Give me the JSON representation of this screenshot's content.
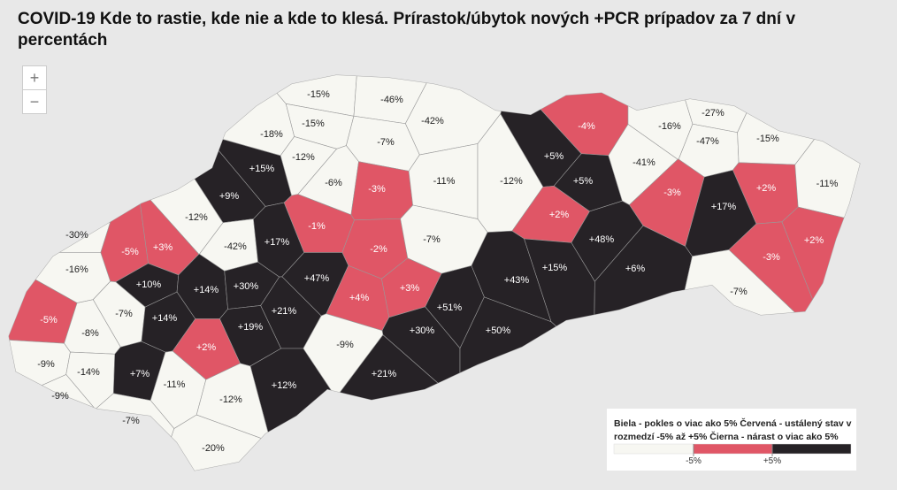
{
  "title": "COVID-19 Kde to rastie, kde nie a kde to klesá. Prírastok/úbytok nových  +PCR prípadov za 7 dní v percentách",
  "zoom": {
    "in": "+",
    "out": "−"
  },
  "legend": {
    "text": "Biela - pokles o viac ako 5% Červená - ustálený stav v rozmedzí -5% až +5% Čierna - nárast o viac ako 5%",
    "colors": [
      "#f7f7f2",
      "#e05666",
      "#262226"
    ],
    "thresholds": [
      {
        "value": -5,
        "label": "-5%"
      },
      {
        "value": 5,
        "label": "+5%"
      }
    ]
  },
  "districts": [
    {
      "value": -15,
      "label": "-15%"
    },
    {
      "value": -46,
      "label": "-46%"
    },
    {
      "value": -15,
      "label": "-15%"
    },
    {
      "value": -42,
      "label": "-42%"
    },
    {
      "value": -18,
      "label": "-18%"
    },
    {
      "value": -7,
      "label": "-7%"
    },
    {
      "value": -4,
      "label": "-4%"
    },
    {
      "value": -16,
      "label": "-16%"
    },
    {
      "value": -27,
      "label": "-27%"
    },
    {
      "value": -47,
      "label": "-47%"
    },
    {
      "value": -15,
      "label": "-15%"
    },
    {
      "value": 5,
      "label": "+5%"
    },
    {
      "value": -12,
      "label": "-12%"
    },
    {
      "value": 15,
      "label": "+15%"
    },
    {
      "value": -6,
      "label": "-6%"
    },
    {
      "value": -3,
      "label": "-3%"
    },
    {
      "value": -11,
      "label": "-11%"
    },
    {
      "value": -12,
      "label": "-12%"
    },
    {
      "value": 5,
      "label": "+5%"
    },
    {
      "value": -41,
      "label": "-41%"
    },
    {
      "value": -3,
      "label": "-3%"
    },
    {
      "value": 2,
      "label": "+2%"
    },
    {
      "value": -11,
      "label": "-11%"
    },
    {
      "value": 9,
      "label": "+9%"
    },
    {
      "value": 17,
      "label": "+17%"
    },
    {
      "value": -12,
      "label": "-12%"
    },
    {
      "value": 2,
      "label": "+2%"
    },
    {
      "value": -1,
      "label": "-1%"
    },
    {
      "value": -30,
      "label": "-30%"
    },
    {
      "value": -42,
      "label": "-42%"
    },
    {
      "value": 17,
      "label": "+17%"
    },
    {
      "value": -2,
      "label": "-2%"
    },
    {
      "value": -7,
      "label": "-7%"
    },
    {
      "value": 48,
      "label": "+48%"
    },
    {
      "value": 2,
      "label": "+2%"
    },
    {
      "value": -5,
      "label": "-5%"
    },
    {
      "value": 3,
      "label": "+3%"
    },
    {
      "value": -3,
      "label": "-3%"
    },
    {
      "value": -16,
      "label": "-16%"
    },
    {
      "value": 15,
      "label": "+15%"
    },
    {
      "value": 6,
      "label": "+6%"
    },
    {
      "value": 10,
      "label": "+10%"
    },
    {
      "value": 14,
      "label": "+14%"
    },
    {
      "value": 30,
      "label": "+30%"
    },
    {
      "value": 47,
      "label": "+47%"
    },
    {
      "value": 3,
      "label": "+3%"
    },
    {
      "value": 43,
      "label": "+43%"
    },
    {
      "value": -7,
      "label": "-7%"
    },
    {
      "value": -5,
      "label": "-5%"
    },
    {
      "value": 4,
      "label": "+4%"
    },
    {
      "value": 51,
      "label": "+51%"
    },
    {
      "value": -7,
      "label": "-7%"
    },
    {
      "value": 14,
      "label": "+14%"
    },
    {
      "value": 21,
      "label": "+21%"
    },
    {
      "value": 19,
      "label": "+19%"
    },
    {
      "value": 30,
      "label": "+30%"
    },
    {
      "value": 50,
      "label": "+50%"
    },
    {
      "value": -8,
      "label": "-8%"
    },
    {
      "value": 2,
      "label": "+2%"
    },
    {
      "value": -9,
      "label": "-9%"
    },
    {
      "value": -9,
      "label": "-9%"
    },
    {
      "value": -14,
      "label": "-14%"
    },
    {
      "value": 7,
      "label": "+7%"
    },
    {
      "value": -11,
      "label": "-11%"
    },
    {
      "value": 12,
      "label": "+12%"
    },
    {
      "value": 21,
      "label": "+21%"
    },
    {
      "value": -9,
      "label": "-9%"
    },
    {
      "value": -12,
      "label": "-12%"
    },
    {
      "value": -7,
      "label": "-7%"
    },
    {
      "value": -20,
      "label": "-20%"
    }
  ]
}
